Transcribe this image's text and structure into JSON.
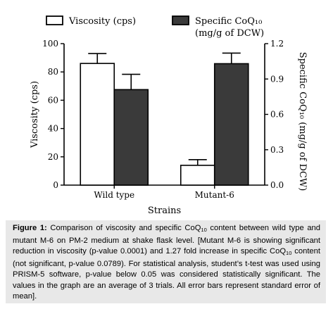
{
  "chart_data": {
    "type": "bar",
    "xlabel": "Strains",
    "ylabel_left": "Viscosity (cps)",
    "ylabel_right": "Specific CoQ₁₀ (mg/g of DCW)",
    "categories": [
      "Wild type",
      "Mutant-6"
    ],
    "left_axis": {
      "min": 0,
      "max": 100,
      "ticks": [
        0,
        20,
        40,
        60,
        80,
        100
      ],
      "tick_labels": [
        "0",
        "20",
        "40",
        "60",
        "80",
        "100"
      ]
    },
    "right_axis": {
      "min": 0,
      "max": 1.2,
      "ticks": [
        0.0,
        0.3,
        0.6,
        0.9,
        1.2
      ],
      "tick_labels": [
        "0.0",
        "0.3",
        "0.6",
        "0.9",
        "1.2"
      ]
    },
    "series": [
      {
        "name": "Viscosity (cps)",
        "axis": "left",
        "color": "#ffffff",
        "values": [
          86,
          14
        ],
        "errors": [
          7,
          4
        ]
      },
      {
        "name": "Specific CoQ₁₀ (mg/g of DCW)",
        "axis": "right",
        "color": "#3a3a3a",
        "values": [
          0.81,
          1.03
        ],
        "errors": [
          0.13,
          0.09
        ]
      }
    ],
    "legend": [
      {
        "label": "Viscosity (cps)"
      },
      {
        "label": "Specific CoQ₁₀",
        "label2": "(mg/g of DCW)"
      }
    ],
    "legend_position": "top",
    "grid": false
  },
  "caption": {
    "label": "Figure 1:",
    "text_1": " Comparison of viscosity and specific CoQ",
    "sub_1": "10",
    "text_2": " content between wild type and mutant M-6 on PM-2 medium at shake flask level. [Mutant M-6 is showing significant reduction in viscosity (p-value 0.0001) and 1.27 fold increase in specific CoQ",
    "sub_2": "10",
    "text_3": " content (not significant, p-value 0.0789). For statistical analysis, student’s t-test was used using PRISM-5 software, p-value below 0.05 was considered statistically significant. The values in the graph are an average of 3 trials. All error bars represent standard error of mean]."
  }
}
